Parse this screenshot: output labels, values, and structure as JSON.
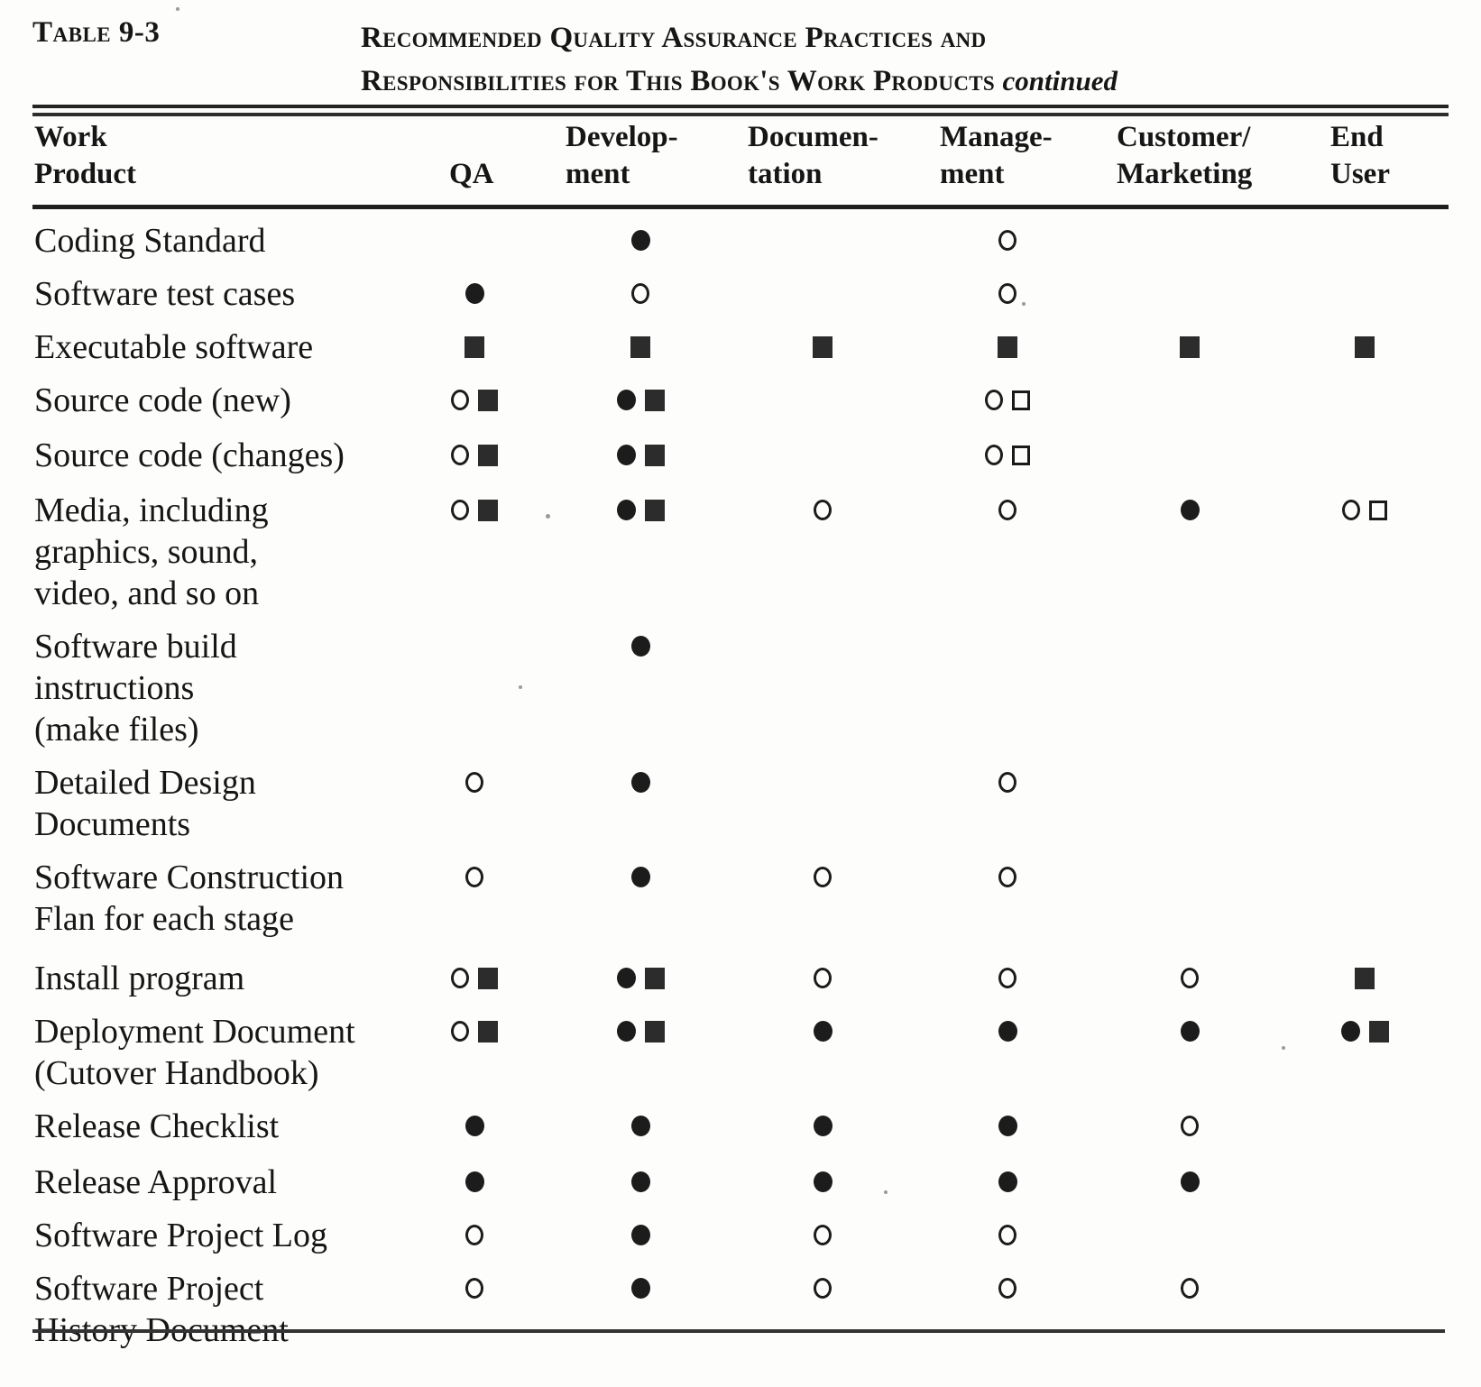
{
  "caption": {
    "table_label": "Table 9-3",
    "title_line_1": "Recommended Quality Assurance Practices and",
    "title_line_2": "Responsibilities for This Book's Work Products",
    "title_suffix": "continued"
  },
  "symbol_legend": {
    "filled-circle": "●",
    "open-circle": "○",
    "filled-square": "■",
    "open-square": "□"
  },
  "table": {
    "columns": [
      {
        "id": "work_product",
        "lines": [
          "Work",
          "Product"
        ]
      },
      {
        "id": "qa",
        "lines": [
          "QA"
        ]
      },
      {
        "id": "development",
        "lines": [
          "Develop-",
          "ment"
        ]
      },
      {
        "id": "documentation",
        "lines": [
          "Documen-",
          "tation"
        ]
      },
      {
        "id": "management",
        "lines": [
          "Manage-",
          "ment"
        ]
      },
      {
        "id": "customer_marketing",
        "lines": [
          "Customer/",
          "Marketing"
        ]
      },
      {
        "id": "end_user",
        "lines": [
          "End",
          "User"
        ]
      }
    ],
    "rows": [
      {
        "product_lines": [
          "Coding Standard"
        ],
        "cells": {
          "qa": [],
          "development": [
            "filled-circle"
          ],
          "documentation": [],
          "management": [
            "open-circle"
          ],
          "customer_marketing": [],
          "end_user": []
        }
      },
      {
        "product_lines": [
          "Software test cases"
        ],
        "cells": {
          "qa": [
            "filled-circle"
          ],
          "development": [
            "open-circle"
          ],
          "documentation": [],
          "management": [
            "open-circle"
          ],
          "customer_marketing": [],
          "end_user": []
        }
      },
      {
        "product_lines": [
          "Executable software"
        ],
        "cells": {
          "qa": [
            "filled-square"
          ],
          "development": [
            "filled-square"
          ],
          "documentation": [
            "filled-square"
          ],
          "management": [
            "filled-square"
          ],
          "customer_marketing": [
            "filled-square"
          ],
          "end_user": [
            "filled-square"
          ]
        }
      },
      {
        "product_lines": [
          "Source code (new)"
        ],
        "cells": {
          "qa": [
            "open-circle",
            "filled-square"
          ],
          "development": [
            "filled-circle",
            "filled-square"
          ],
          "documentation": [],
          "management": [
            "open-circle",
            "open-square"
          ],
          "customer_marketing": [],
          "end_user": []
        }
      },
      {
        "product_lines": [
          "Source code (changes)"
        ],
        "cells": {
          "qa": [
            "open-circle",
            "filled-square"
          ],
          "development": [
            "filled-circle",
            "filled-square"
          ],
          "documentation": [],
          "management": [
            "open-circle",
            "open-square"
          ],
          "customer_marketing": [],
          "end_user": []
        }
      },
      {
        "product_lines": [
          "Media, including",
          "graphics, sound,",
          "video, and so on"
        ],
        "cells": {
          "qa": [
            "open-circle",
            "filled-square"
          ],
          "development": [
            "filled-circle",
            "filled-square"
          ],
          "documentation": [
            "open-circle"
          ],
          "management": [
            "open-circle"
          ],
          "customer_marketing": [
            "filled-circle"
          ],
          "end_user": [
            "open-circle",
            "open-square"
          ]
        }
      },
      {
        "product_lines": [
          "Software build",
          "instructions",
          "(make files)"
        ],
        "cells": {
          "qa": [],
          "development": [
            "filled-circle"
          ],
          "documentation": [],
          "management": [],
          "customer_marketing": [],
          "end_user": []
        }
      },
      {
        "product_lines": [
          "Detailed Design",
          "Documents"
        ],
        "cells": {
          "qa": [
            "open-circle"
          ],
          "development": [
            "filled-circle"
          ],
          "documentation": [],
          "management": [
            "open-circle"
          ],
          "customer_marketing": [],
          "end_user": []
        }
      },
      {
        "product_lines": [
          "Software  Construction",
          "Flan for each stage"
        ],
        "cells": {
          "qa": [
            "open-circle"
          ],
          "development": [
            "filled-circle"
          ],
          "documentation": [
            "open-circle"
          ],
          "management": [
            "open-circle"
          ],
          "customer_marketing": [],
          "end_user": []
        }
      },
      {
        "product_lines": [
          "Install program"
        ],
        "cells": {
          "qa": [
            "open-circle",
            "filled-square"
          ],
          "development": [
            "filled-circle",
            "filled-square"
          ],
          "documentation": [
            "open-circle"
          ],
          "management": [
            "open-circle"
          ],
          "customer_marketing": [
            "open-circle"
          ],
          "end_user": [
            "filled-square"
          ]
        }
      },
      {
        "product_lines": [
          "Deployment Document",
          "(Cutover  Handbook)"
        ],
        "cells": {
          "qa": [
            "open-circle",
            "filled-square"
          ],
          "development": [
            "filled-circle",
            "filled-square"
          ],
          "documentation": [
            "filled-circle"
          ],
          "management": [
            "filled-circle"
          ],
          "customer_marketing": [
            "filled-circle"
          ],
          "end_user": [
            "filled-circle",
            "filled-square"
          ]
        }
      },
      {
        "product_lines": [
          "Release  Checklist"
        ],
        "cells": {
          "qa": [
            "filled-circle"
          ],
          "development": [
            "filled-circle"
          ],
          "documentation": [
            "filled-circle"
          ],
          "management": [
            "filled-circle"
          ],
          "customer_marketing": [
            "open-circle"
          ],
          "end_user": []
        }
      },
      {
        "product_lines": [
          "Release  Approval"
        ],
        "cells": {
          "qa": [
            "filled-circle"
          ],
          "development": [
            "filled-circle"
          ],
          "documentation": [
            "filled-circle"
          ],
          "management": [
            "filled-circle"
          ],
          "customer_marketing": [
            "filled-circle"
          ],
          "end_user": []
        }
      },
      {
        "product_lines": [
          "Software Project Log"
        ],
        "cells": {
          "qa": [
            "open-circle"
          ],
          "development": [
            "filled-circle"
          ],
          "documentation": [
            "open-circle"
          ],
          "management": [
            "open-circle"
          ],
          "customer_marketing": [],
          "end_user": []
        }
      },
      {
        "product_lines": [
          "Software Project",
          "History Document"
        ],
        "cells": {
          "qa": [
            "open-circle"
          ],
          "development": [
            "filled-circle"
          ],
          "documentation": [
            "open-circle"
          ],
          "management": [
            "open-circle"
          ],
          "customer_marketing": [
            "open-circle"
          ],
          "end_user": []
        }
      }
    ]
  }
}
